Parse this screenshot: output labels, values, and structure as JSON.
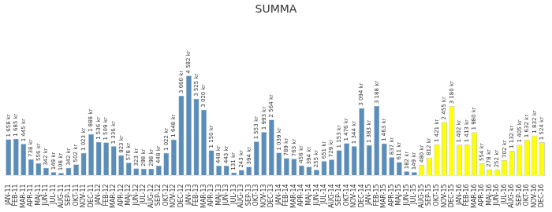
{
  "chart_data": {
    "type": "bar",
    "title": "SUMMA",
    "categories": [
      "JAN-11",
      "FEB-11",
      "MAR-11",
      "APR-11",
      "MAJ-11",
      "JUN-11",
      "JUL-11",
      "AUG-11",
      "SEP-11",
      "OKT-11",
      "NOV-11",
      "DEC-11",
      "JAN-12",
      "FEB-12",
      "MAR-12",
      "APR-12",
      "MAJ-12",
      "JUN-12",
      "JUL-12",
      "AUG-12",
      "SEP-12",
      "OKT-12",
      "NOV-12",
      "DEC-12",
      "JAN-13",
      "FEB-13",
      "MAR-13",
      "APR-13",
      "MAJ-13",
      "JUN-13",
      "JUL-13",
      "AUG-13",
      "SEP-13",
      "OKT-13",
      "NOV-13",
      "DEC-13",
      "JAN-14",
      "FEB-14",
      "MAR-14",
      "APR-14",
      "MAJ-14",
      "JUN-14",
      "JUL-14",
      "AUG-14",
      "SEP-14",
      "OKT-14",
      "NOV-14",
      "DEC-14",
      "JAN-15",
      "FEB-15",
      "MAR-15",
      "APR-15",
      "MAJ-15",
      "JUN-15",
      "JUL-15",
      "AUG-15",
      "SEP-15",
      "OKT-15",
      "NOV-15",
      "DEC-15",
      "JAN-16",
      "FEB-16",
      "MAR-16",
      "APR-16",
      "MAJ-16",
      "JUN-16",
      "JUL-16",
      "AUG-16",
      "SEP-16",
      "OKT-16",
      "NOV-16",
      "DEC-16"
    ],
    "values": [
      1658,
      1685,
      1445,
      738,
      556,
      342,
      149,
      108,
      342,
      502,
      1023,
      1888,
      1536,
      1509,
      1336,
      923,
      578,
      323,
      298,
      298,
      448,
      1022,
      1648,
      3660,
      4582,
      3525,
      3020,
      1150,
      448,
      443,
      131,
      243,
      394,
      1553,
      1993,
      2564,
      1039,
      789,
      763,
      456,
      394,
      255,
      651,
      729,
      1153,
      1476,
      1344,
      3094,
      1383,
      3188,
      1463,
      837,
      611,
      182,
      149,
      480,
      812,
      1421,
      2455,
      3180,
      1402,
      1413,
      1980,
      554,
      278,
      252,
      702,
      1132,
      1405,
      1632,
      1832,
      1524
    ],
    "value_labels": [
      "1 658 kr",
      "1 685 kr",
      "1 445 kr",
      "738 kr",
      "556 kr",
      "342 kr",
      "149 kr",
      "108 kr",
      "342 kr",
      "502 kr",
      "1 023 kr",
      "1 888 kr",
      "1 536 kr",
      "1 509 kr",
      "1 336 kr",
      "923 kr",
      "578 kr",
      "323 kr",
      "298 kr",
      "298 kr",
      "448 kr",
      "1 022 kr",
      "1 648 kr",
      "3 660 kr",
      "4 582 kr",
      "3 525 kr",
      "3 020 kr",
      "1 150 kr",
      "448 kr",
      "443 kr",
      "131 kr",
      "243 kr",
      "394 kr",
      "1 553 kr",
      "1 993 kr",
      "2 564 kr",
      "1 039 kr",
      "789 kr",
      "763 kr",
      "456 kr",
      "394 kr",
      "255 kr",
      "651 kr",
      "729 kr",
      "1 153 kr",
      "1 476 kr",
      "1 344 kr",
      "3 094 kr",
      "1 383 kr",
      "3 188 kr",
      "1 463 kr",
      "837 kr",
      "611 kr",
      "182 kr",
      "149 kr",
      "480 kr",
      "812 kr",
      "1 421 kr",
      "2 455 kr",
      "3 180 kr",
      "1 402 kr",
      "1 413 kr",
      "1 980 kr",
      "554 kr",
      "278 kr",
      "252 kr",
      "702 kr",
      "1 132 kr",
      "1 405 kr",
      "1 632 kr",
      "1 832 kr",
      "1 524 kr"
    ],
    "color": "#5b8db8",
    "colors": [
      "#5b8db8",
      "#5b8db8",
      "#5b8db8",
      "#5b8db8",
      "#5b8db8",
      "#5b8db8",
      "#5b8db8",
      "#5b8db8",
      "#5b8db8",
      "#5b8db8",
      "#5b8db8",
      "#5b8db8",
      "#5b8db8",
      "#5b8db8",
      "#5b8db8",
      "#5b8db8",
      "#5b8db8",
      "#5b8db8",
      "#5b8db8",
      "#5b8db8",
      "#5b8db8",
      "#5b8db8",
      "#5b8db8",
      "#5b8db8",
      "#5b8db8",
      "#5b8db8",
      "#5b8db8",
      "#5b8db8",
      "#5b8db8",
      "#5b8db8",
      "#5b8db8",
      "#5b8db8",
      "#5b8db8",
      "#5b8db8",
      "#5b8db8",
      "#5b8db8",
      "#5b8db8",
      "#5b8db8",
      "#5b8db8",
      "#5b8db8",
      "#5b8db8",
      "#5b8db8",
      "#5b8db8",
      "#5b8db8",
      "#5b8db8",
      "#5b8db8",
      "#5b8db8",
      "#5b8db8",
      "#5b8db8",
      "#5b8db8",
      "#5b8db8",
      "#5b8db8",
      "#5b8db8",
      "#5b8db8",
      "#5b8db8",
      "#ffff00",
      "#ffff00",
      "#ffff00",
      "#ffff00",
      "#ffff00",
      "#ffff00",
      "#ffff00",
      "#ffff00",
      "#ffff00",
      "#ffff00",
      "#ffff00",
      "#ffff00",
      "#ffff00",
      "#ffff00",
      "#ffff00",
      "#ffff00",
      "#ffff00"
    ],
    "ylim": [
      0,
      7102.1
    ],
    "grid": false,
    "data_labels": true,
    "tick_labels": "x"
  }
}
